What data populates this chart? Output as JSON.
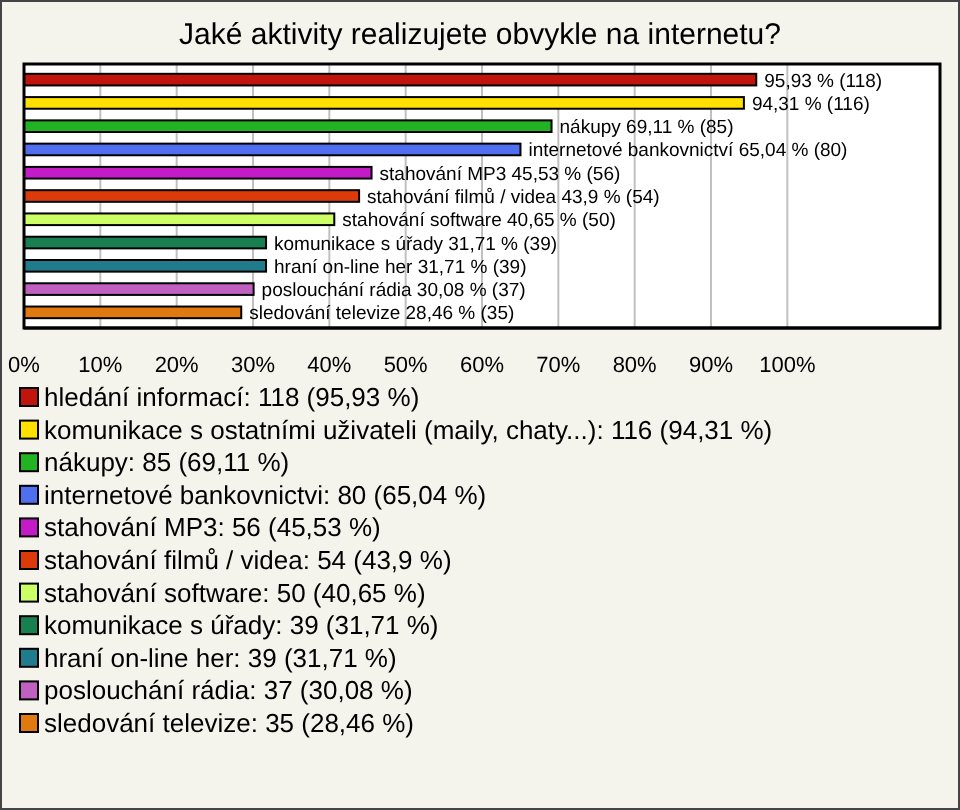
{
  "chart_data": {
    "type": "bar",
    "orientation": "horizontal",
    "title": "Jaké aktivity realizujete obvykle na internetu?",
    "categories": [
      null,
      null,
      null,
      null,
      null,
      null,
      null,
      null,
      null,
      null,
      null
    ],
    "values": [
      95.93,
      94.31,
      69.11,
      65.04,
      45.53,
      43.9,
      40.65,
      31.71,
      31.71,
      30.08,
      28.46
    ],
    "value_labels": [
      "95,93 % (118)",
      "94,31 % (116)",
      "nákupy 69,11 % (85)",
      "internetové bankovnictví 65,04 % (80)",
      "stahování MP3 45,53 % (56)",
      "stahování filmů / videa 43,9 % (54)",
      "stahování software 40,65 % (50)",
      "komunikace s úřady 31,71 % (39)",
      "hraní on-line her 31,71 % (39)",
      "poslouchání rádia 30,08 % (37)",
      "sledování televize 28,46 % (35)"
    ],
    "colors": [
      "#c0140c",
      "#ffe000",
      "#22b322",
      "#4f6fef",
      "#c21bc7",
      "#dd3a0a",
      "#ccff66",
      "#188050",
      "#207c8c",
      "#c060c0",
      "#e07a10"
    ],
    "annotations": [
      "hledání informací: 118 (95,93 %)",
      "komunikace s ostatními uživateli (maily, chaty...): 116 (94,31 %)",
      "nákupy: 85 (69,11 %)",
      "internetové bankovnictvi: 80 (65,04 %)",
      "stahování MP3: 56 (45,53 %)",
      "stahování filmů / videa: 54 (43,9 %)",
      "stahování software: 50 (40,65 %)",
      "komunikace s úřady: 39 (31,71 %)",
      "hraní on-line her: 39 (31,71 %)",
      "poslouchání rádia: 37 (30,08 %)",
      "sledování televize: 35 (28,46 %)"
    ],
    "xlim": [
      0,
      120
    ],
    "xticks": [
      {
        "value": 0,
        "label": "0%"
      },
      {
        "value": 10,
        "label": "10%"
      },
      {
        "value": 20,
        "label": "20%"
      },
      {
        "value": 30,
        "label": "30%"
      },
      {
        "value": 40,
        "label": "40%"
      },
      {
        "value": 50,
        "label": "50%"
      },
      {
        "value": 60,
        "label": "60%"
      },
      {
        "value": 70,
        "label": "70%"
      },
      {
        "value": 80,
        "label": "80%"
      },
      {
        "value": 90,
        "label": "90%"
      },
      {
        "value": 100,
        "label": "100%"
      }
    ],
    "grid": "x"
  }
}
